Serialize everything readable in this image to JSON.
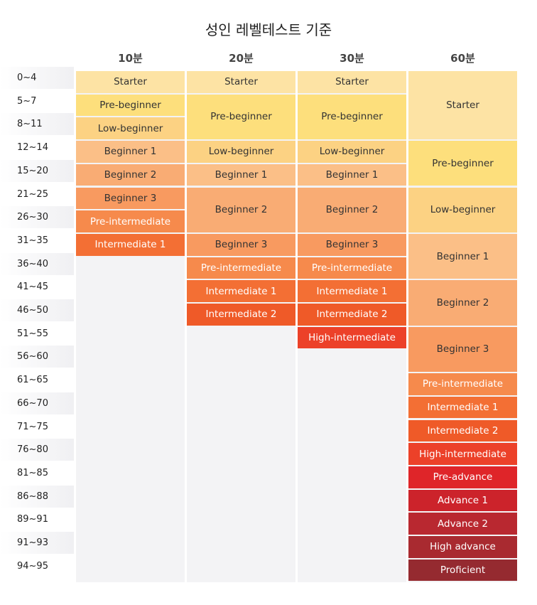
{
  "title": "성인 레벨테스트 기준",
  "chart_data": {
    "type": "table",
    "title": "성인 레벨테스트 기준",
    "columns": [
      "10분",
      "20분",
      "30분",
      "60분"
    ],
    "score_ranges": [
      "0~4",
      "5~7",
      "8~11",
      "12~14",
      "15~20",
      "21~25",
      "26~30",
      "31~35",
      "36~40",
      "41~45",
      "46~50",
      "51~55",
      "56~60",
      "61~65",
      "66~70",
      "71~75",
      "76~80",
      "81~85",
      "86~88",
      "89~91",
      "91~93",
      "94~95"
    ],
    "level_colors": {
      "Starter": "#fde3a4",
      "Pre-beginner": "#fddf7c",
      "Low-beginner": "#fcd283",
      "Beginner 1": "#fbbf87",
      "Beginner 2": "#f9ac74",
      "Beginner 3": "#f89a60",
      "Pre-intermediate": "#f68a4c",
      "Intermediate 1": "#f36f34",
      "Intermediate 2": "#ef5a28",
      "High-intermediate": "#ec4129",
      "Pre-advance": "#df2529",
      "Advance 1": "#cc232b",
      "Advance 2": "#b92830",
      "High advance": "#a92a30",
      "Proficient": "#952a30"
    },
    "series": [
      {
        "name": "10분",
        "levels": [
          {
            "label": "Starter",
            "rows": [
              0,
              0
            ]
          },
          {
            "label": "Pre-beginner",
            "rows": [
              1,
              1
            ]
          },
          {
            "label": "Low-beginner",
            "rows": [
              2,
              2
            ]
          },
          {
            "label": "Beginner 1",
            "rows": [
              3,
              3
            ]
          },
          {
            "label": "Beginner 2",
            "rows": [
              4,
              4
            ]
          },
          {
            "label": "Beginner 3",
            "rows": [
              5,
              5
            ]
          },
          {
            "label": "Pre-intermediate",
            "rows": [
              6,
              6
            ]
          },
          {
            "label": "Intermediate 1",
            "rows": [
              7,
              7
            ]
          }
        ]
      },
      {
        "name": "20분",
        "levels": [
          {
            "label": "Starter",
            "rows": [
              0,
              0
            ]
          },
          {
            "label": "Pre-beginner",
            "rows": [
              1,
              2
            ]
          },
          {
            "label": "Low-beginner",
            "rows": [
              3,
              3
            ]
          },
          {
            "label": "Beginner 1",
            "rows": [
              4,
              4
            ]
          },
          {
            "label": "Beginner 2",
            "rows": [
              5,
              6
            ]
          },
          {
            "label": "Beginner 3",
            "rows": [
              7,
              7
            ]
          },
          {
            "label": "Pre-intermediate",
            "rows": [
              8,
              8
            ]
          },
          {
            "label": "Intermediate 1",
            "rows": [
              9,
              9
            ]
          },
          {
            "label": "Intermediate 2",
            "rows": [
              10,
              10
            ]
          }
        ]
      },
      {
        "name": "30분",
        "levels": [
          {
            "label": "Starter",
            "rows": [
              0,
              0
            ]
          },
          {
            "label": "Pre-beginner",
            "rows": [
              1,
              2
            ]
          },
          {
            "label": "Low-beginner",
            "rows": [
              3,
              3
            ]
          },
          {
            "label": "Beginner 1",
            "rows": [
              4,
              4
            ]
          },
          {
            "label": "Beginner 2",
            "rows": [
              5,
              6
            ]
          },
          {
            "label": "Beginner 3",
            "rows": [
              7,
              7
            ]
          },
          {
            "label": "Pre-intermediate",
            "rows": [
              8,
              8
            ]
          },
          {
            "label": "Intermediate 1",
            "rows": [
              9,
              9
            ]
          },
          {
            "label": "Intermediate 2",
            "rows": [
              10,
              10
            ]
          },
          {
            "label": "High-intermediate",
            "rows": [
              11,
              11
            ]
          }
        ]
      },
      {
        "name": "60분",
        "levels": [
          {
            "label": "Starter",
            "rows": [
              0,
              2
            ]
          },
          {
            "label": "Pre-beginner",
            "rows": [
              3,
              4
            ]
          },
          {
            "label": "Low-beginner",
            "rows": [
              5,
              6
            ]
          },
          {
            "label": "Beginner 1",
            "rows": [
              7,
              8
            ]
          },
          {
            "label": "Beginner 2",
            "rows": [
              9,
              10
            ]
          },
          {
            "label": "Beginner 3",
            "rows": [
              11,
              12
            ]
          },
          {
            "label": "Pre-intermediate",
            "rows": [
              13,
              13
            ]
          },
          {
            "label": "Intermediate 1",
            "rows": [
              14,
              14
            ]
          },
          {
            "label": "Intermediate 2",
            "rows": [
              15,
              15
            ]
          },
          {
            "label": "High-intermediate",
            "rows": [
              16,
              16
            ]
          },
          {
            "label": "Pre-advance",
            "rows": [
              17,
              17
            ]
          },
          {
            "label": "Advance 1",
            "rows": [
              18,
              18
            ]
          },
          {
            "label": "Advance 2",
            "rows": [
              19,
              19
            ]
          },
          {
            "label": "High advance",
            "rows": [
              20,
              20
            ]
          },
          {
            "label": "Proficient",
            "rows": [
              21,
              21
            ]
          }
        ]
      }
    ]
  }
}
